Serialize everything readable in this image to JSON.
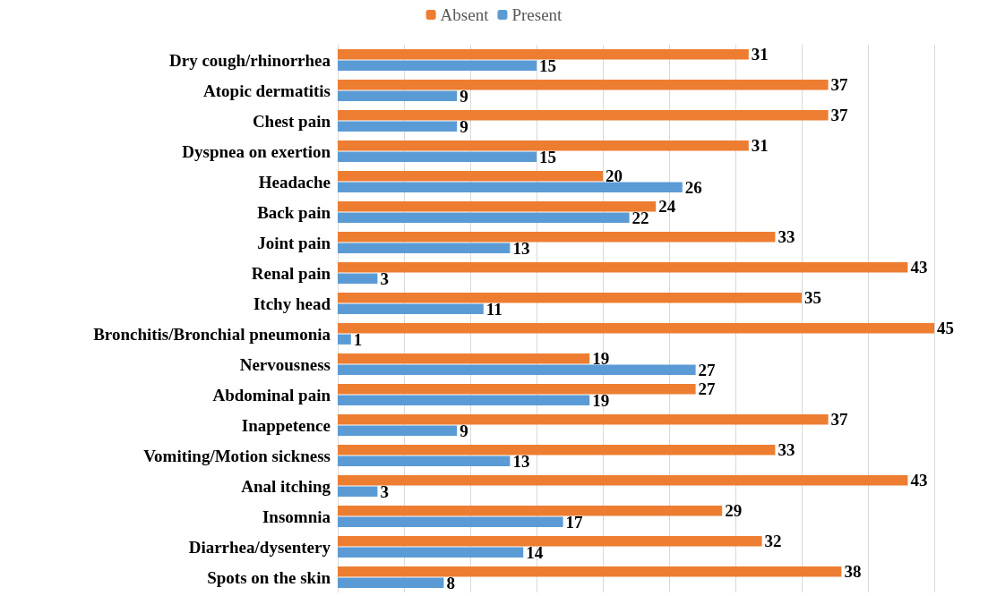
{
  "chart_data": {
    "type": "bar",
    "orientation": "horizontal",
    "categories": [
      "Dry cough/rhinorrhea",
      "Atopic dermatitis",
      "Chest pain",
      "Dyspnea on exertion",
      "Headache",
      "Back pain",
      "Joint pain",
      "Renal pain",
      "Itchy head",
      "Bronchitis/Bronchial pneumonia",
      "Nervousness",
      "Abdominal pain",
      "Inappetence",
      "Vomiting/Motion sickness",
      "Anal itching",
      "Insomnia",
      "Diarrhea/dysentery",
      "Spots on the skin"
    ],
    "series": [
      {
        "name": "Absent",
        "color": "#ed7d31",
        "values": [
          31,
          37,
          37,
          31,
          20,
          24,
          33,
          43,
          35,
          45,
          19,
          27,
          37,
          33,
          43,
          29,
          32,
          38
        ]
      },
      {
        "name": "Present",
        "color": "#5b9bd5",
        "values": [
          15,
          9,
          9,
          15,
          26,
          22,
          13,
          3,
          11,
          1,
          27,
          19,
          9,
          13,
          3,
          17,
          14,
          8
        ]
      }
    ],
    "xlim": [
      0,
      45
    ],
    "xticks": [
      {
        "value": 0,
        "label": null
      },
      {
        "value": 5,
        "label": null
      },
      {
        "value": 10,
        "label": null
      },
      {
        "value": 15,
        "label": null
      },
      {
        "value": 20,
        "label": null
      },
      {
        "value": 25,
        "label": null
      },
      {
        "value": 30,
        "label": null
      },
      {
        "value": 35,
        "label": null
      },
      {
        "value": 40,
        "label": null
      },
      {
        "value": 45,
        "label": null
      }
    ],
    "tick_labels": "y",
    "grid": "x",
    "legend": "top",
    "data_labels": true
  }
}
